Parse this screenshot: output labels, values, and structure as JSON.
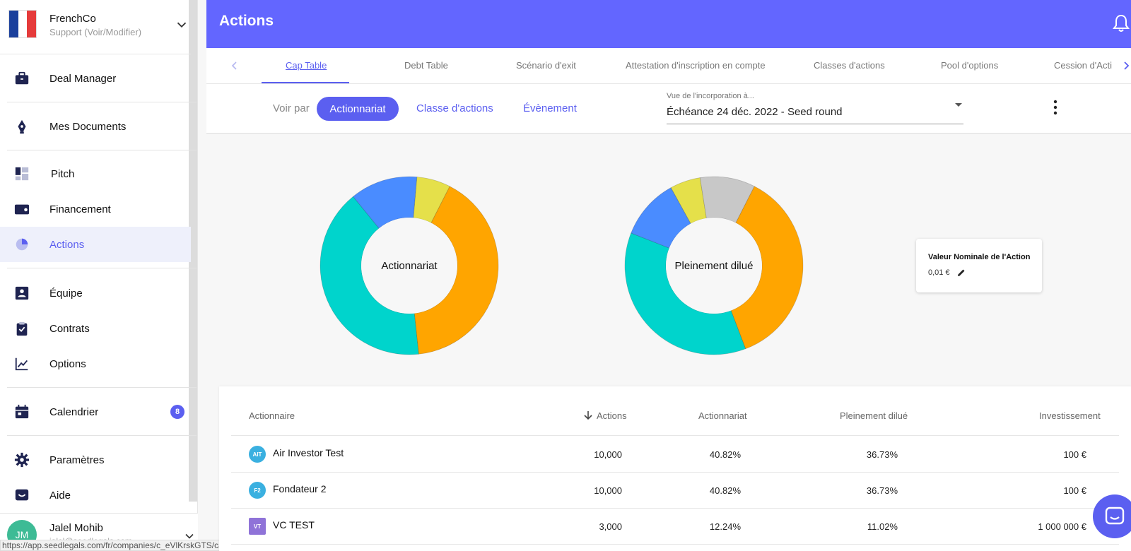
{
  "company": {
    "name": "FrenchCo",
    "role": "Support (Voir/Modifier)",
    "flag_colors": [
      "#1a3f9c",
      "#ffffff",
      "#e53b3b"
    ]
  },
  "nav": {
    "deal_manager": "Deal Manager",
    "documents": "Mes Documents",
    "pitch": "Pitch",
    "financement": "Financement",
    "actions": "Actions",
    "equipe": "Équipe",
    "contrats": "Contrats",
    "options": "Options",
    "calendrier": "Calendrier",
    "calendrier_badge": "8",
    "parametres": "Paramètres",
    "aide": "Aide"
  },
  "user": {
    "initials": "JM",
    "name": "Jalel Mohib",
    "email": "jalel@seedlegals.com"
  },
  "status_url": "https://app.seedlegals.com/fr/companies/c_eVlKrskGTS/captable/dashboard",
  "header": {
    "title": "Actions"
  },
  "tabs": [
    "Cap Table",
    "Debt Table",
    "Scénario d'exit",
    "Attestation d'inscription en compte",
    "Classes d'actions",
    "Pool d'options",
    "Cession d'Acti"
  ],
  "filter": {
    "voir_par": "Voir par",
    "options": [
      "Actionnariat",
      "Classe d'actions",
      "Évènement"
    ],
    "select_label": "Vue de l'incorporation à...",
    "select_value": "Échéance 24 déc. 2022 - Seed round"
  },
  "chart_data": [
    {
      "type": "pie",
      "title": "Actionnariat",
      "series": [
        {
          "color": "#ffa500",
          "value": 40.82
        },
        {
          "color": "#00d4cc",
          "value": 40.82
        },
        {
          "color": "#4a8cff",
          "value": 12.24
        },
        {
          "color": "#e5e04a",
          "value": 6.12
        }
      ]
    },
    {
      "type": "pie",
      "title": "Pleinement dilué",
      "series": [
        {
          "color": "#ffa500",
          "value": 36.73
        },
        {
          "color": "#00d4cc",
          "value": 36.73
        },
        {
          "color": "#4a8cff",
          "value": 11.02
        },
        {
          "color": "#e5e04a",
          "value": 5.52
        },
        {
          "color": "#c8c8c8",
          "value": 10.0
        }
      ]
    }
  ],
  "nominal": {
    "title": "Valeur Nominale de l'Action",
    "value": "0,01 €"
  },
  "table": {
    "headers": [
      "Actionnaire",
      "Actions",
      "Actionnariat",
      "Pleinement dilué",
      "Investissement"
    ],
    "rows": [
      {
        "initials": "AIT",
        "color": "#3ab0e0",
        "name": "Air Investor Test",
        "actions": "10,000",
        "actionnariat": "40.82%",
        "dilue": "36.73%",
        "investissement": "100 €"
      },
      {
        "initials": "F2",
        "color": "#3ab0e0",
        "name": "Fondateur 2",
        "actions": "10,000",
        "actionnariat": "40.82%",
        "dilue": "36.73%",
        "investissement": "100 €"
      },
      {
        "initials": "VT",
        "color": "#8f73d8",
        "name": "VC TEST",
        "actions": "3,000",
        "actionnariat": "12.24%",
        "dilue": "11.02%",
        "investissement": "1 000 000 €"
      }
    ]
  },
  "accent": "#5b5ff0",
  "header_color": "#6366ff"
}
